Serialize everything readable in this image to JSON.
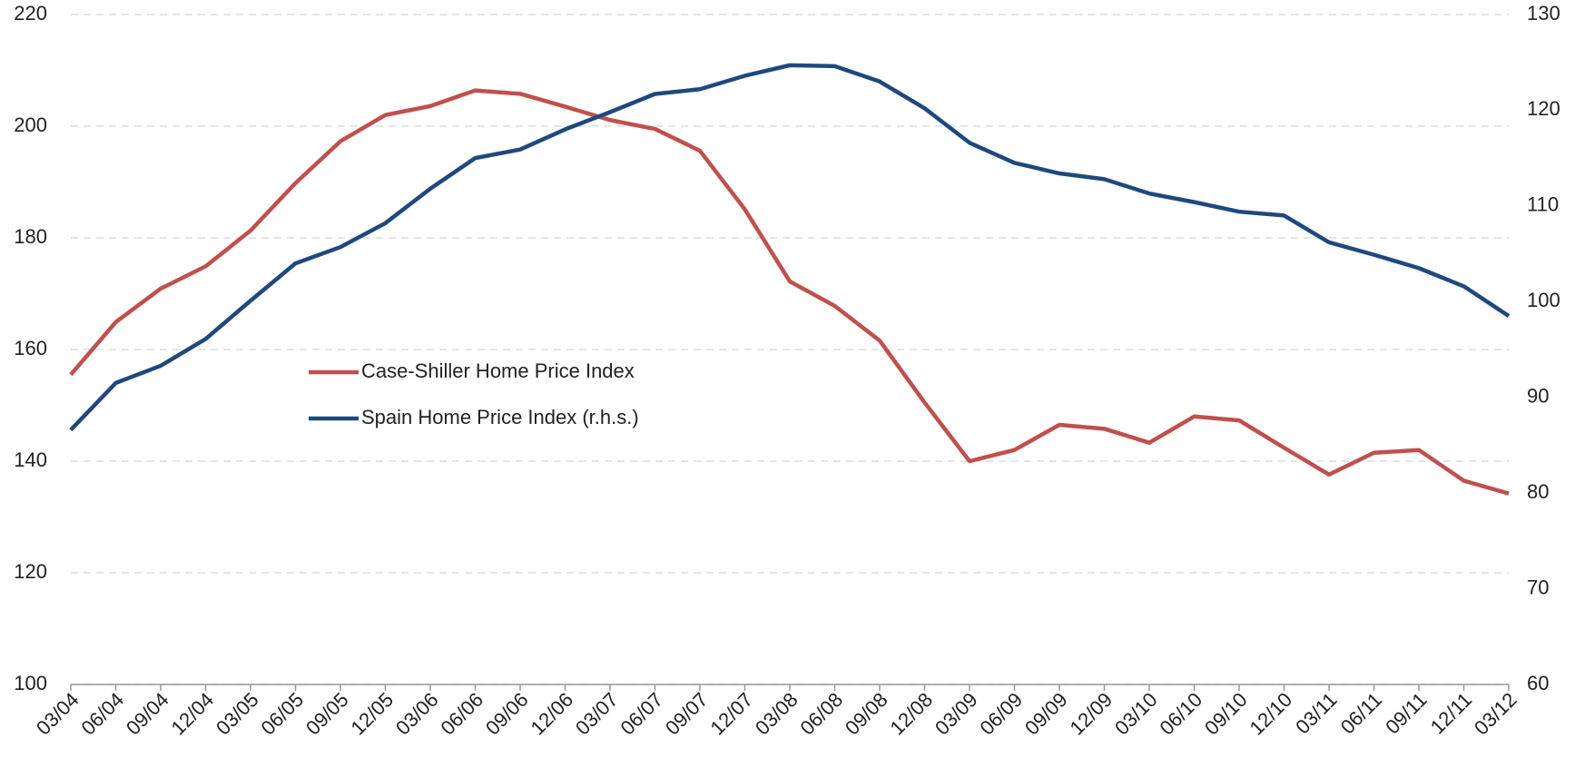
{
  "chart_data": {
    "type": "line",
    "categories": [
      "03/04",
      "06/04",
      "09/04",
      "12/04",
      "03/05",
      "06/05",
      "09/05",
      "12/05",
      "03/06",
      "06/06",
      "09/06",
      "12/06",
      "03/07",
      "06/07",
      "09/07",
      "12/07",
      "03/08",
      "06/08",
      "09/08",
      "12/08",
      "03/09",
      "06/09",
      "09/09",
      "12/09",
      "03/10",
      "06/10",
      "09/10",
      "12/10",
      "03/11",
      "06/11",
      "09/11",
      "12/11",
      "03/12"
    ],
    "series": [
      {
        "name": "Case-Shiller Home Price Index",
        "color": "#c0504d",
        "values": [
          155.5,
          164.9,
          170.9,
          174.9,
          181.3,
          189.8,
          197.3,
          202,
          203.6,
          206.4,
          205.8,
          203.5,
          201.1,
          199.5,
          195.6,
          185.1,
          172.2,
          167.8,
          161.6,
          150.5,
          140,
          142,
          146.5,
          145.8,
          143.3,
          148,
          147.3,
          142.4,
          137.6,
          141.5,
          142,
          136.5,
          134.2
        ]
      },
      {
        "name": "Spain Home Price Index (r.h.s.)",
        "color": "#1f497d",
        "axis": "y2",
        "values": [
          86.6,
          91.5,
          93.3,
          96.1,
          100.1,
          104,
          105.7,
          108.2,
          111.8,
          115,
          115.9,
          118,
          119.8,
          121.7,
          122.2,
          123.6,
          124.7,
          124.6,
          123,
          120.2,
          116.6,
          114.5,
          113.4,
          112.8,
          111.3,
          110.4,
          109.4,
          109,
          106.2,
          104.9,
          103.5,
          101.6,
          98.5
        ]
      }
    ],
    "ylim": [
      100,
      220
    ],
    "yticks": [
      100,
      120,
      140,
      160,
      180,
      200,
      220
    ],
    "y2lim": [
      60,
      130
    ],
    "y2ticks": [
      60,
      70,
      80,
      90,
      100,
      110,
      120,
      130
    ],
    "grid": true
  }
}
